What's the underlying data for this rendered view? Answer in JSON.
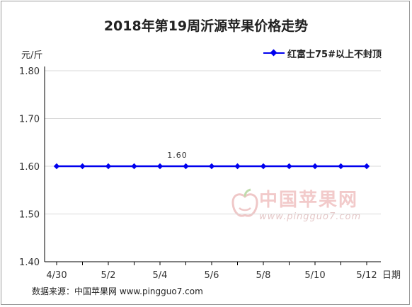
{
  "title": "2018年第19周沂源苹果价格走势",
  "unit_label": "元/斤",
  "source_text": "数据来源：中国苹果网 www.pingguo7.com",
  "watermark": {
    "name_cn": "中国苹果网",
    "url": "www.pingguo7.com"
  },
  "colors": {
    "series": "#0000ee",
    "grid": "#d9d9d9",
    "axis": "#000000",
    "watermark": "#e8a0a0"
  },
  "chart_data": {
    "type": "line",
    "title": "2018年第19周沂源苹果价格走势",
    "xlabel": "日期",
    "ylabel": "元/斤",
    "ylim": [
      1.4,
      1.8
    ],
    "yticks": [
      "1.40",
      "1.50",
      "1.60",
      "1.70",
      "1.80"
    ],
    "grid": true,
    "legend_position": "top-right",
    "x": [
      "4/30",
      "5/1",
      "5/2",
      "5/3",
      "5/4",
      "5/5",
      "5/6",
      "5/7",
      "5/8",
      "5/9",
      "5/10",
      "5/11",
      "5/12"
    ],
    "xtick_labels": [
      "4/30",
      "",
      "5/2",
      "",
      "5/4",
      "",
      "5/6",
      "",
      "5/8",
      "",
      "5/10",
      "",
      "5/12"
    ],
    "series": [
      {
        "name": "红富士75#以上不封顶",
        "values": [
          1.6,
          1.6,
          1.6,
          1.6,
          1.6,
          1.6,
          1.6,
          1.6,
          1.6,
          1.6,
          1.6,
          1.6,
          1.6
        ]
      }
    ],
    "annotations": [
      {
        "x": "5/5",
        "text": "1.60"
      }
    ]
  }
}
